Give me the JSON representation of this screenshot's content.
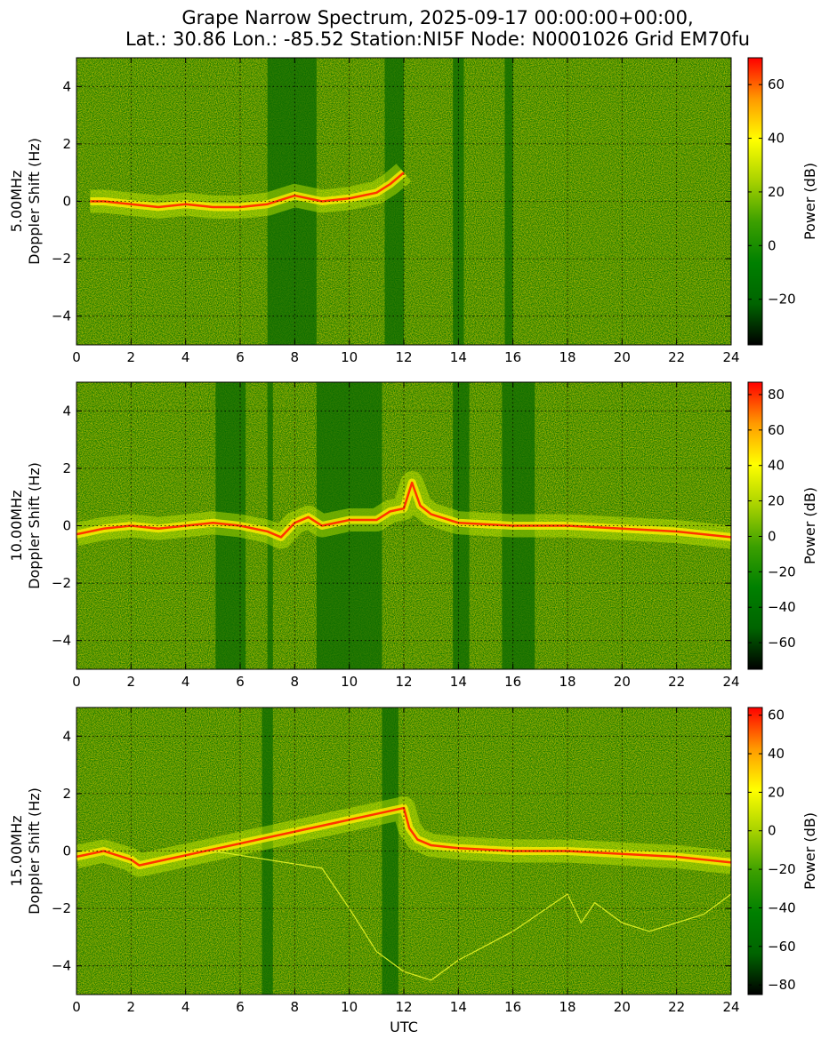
{
  "title_line1": "Grape Narrow Spectrum, 2025-09-17 00:00:00+00:00,",
  "title_line2": "Lat.: 30.86 Lon.: -85.52 Station:NI5F Node: N0001026 Grid EM70fu",
  "colors": {
    "colormap": [
      "#000000",
      "#006400",
      "#008000",
      "#3ca000",
      "#a8d200",
      "#ffff00",
      "#ff9900",
      "#ff0000"
    ],
    "grid": "#000000",
    "trace_main": "#ff3300"
  },
  "chart_data": [
    {
      "type": "heatmap",
      "panel": "5.00MHz",
      "ylabel_line1": "5.00MHz",
      "ylabel_line2": "Doppler Shift (Hz)",
      "xlabel": "",
      "x_ticks": [
        "0",
        "2",
        "4",
        "6",
        "8",
        "10",
        "12",
        "14",
        "16",
        "18",
        "20",
        "22",
        "24"
      ],
      "y_ticks": [
        "4",
        "2",
        "0",
        "−2",
        "−4"
      ],
      "xlim": [
        0,
        24
      ],
      "ylim": [
        -5,
        5
      ],
      "grid": true,
      "colorbar_label": "Power (dB)",
      "colorbar_range": [
        -37,
        70
      ],
      "colorbar_ticks": [
        "60",
        "40",
        "20",
        "0",
        "−20"
      ],
      "colorbar_tick_values": [
        60,
        40,
        20,
        0,
        -20
      ],
      "main_trace": {
        "x": [
          0.5,
          1.0,
          2.0,
          3.0,
          4.0,
          5.0,
          6.0,
          7.0,
          8.0,
          9.0,
          10.0,
          11.0,
          11.5,
          12.0
        ],
        "y": [
          0.0,
          0.0,
          -0.1,
          -0.2,
          -0.1,
          -0.2,
          -0.2,
          -0.1,
          0.2,
          0.0,
          0.1,
          0.3,
          0.6,
          1.0
        ]
      },
      "dark_bands": [
        [
          7.0,
          8.8
        ],
        [
          11.3,
          12.0
        ],
        [
          13.8,
          14.2
        ],
        [
          15.7,
          16.0
        ]
      ]
    },
    {
      "type": "heatmap",
      "panel": "10.00MHz",
      "ylabel_line1": "10.00MHz",
      "ylabel_line2": "Doppler Shift (Hz)",
      "xlabel": "",
      "x_ticks": [
        "0",
        "2",
        "4",
        "6",
        "8",
        "10",
        "12",
        "14",
        "16",
        "18",
        "20",
        "22",
        "24"
      ],
      "y_ticks": [
        "4",
        "2",
        "0",
        "−2",
        "−4"
      ],
      "xlim": [
        0,
        24
      ],
      "ylim": [
        -5,
        5
      ],
      "grid": true,
      "colorbar_label": "Power (dB)",
      "colorbar_range": [
        -75,
        87
      ],
      "colorbar_ticks": [
        "80",
        "60",
        "40",
        "20",
        "0",
        "−20",
        "−40",
        "−60"
      ],
      "colorbar_tick_values": [
        80,
        60,
        40,
        20,
        0,
        -20,
        -40,
        -60
      ],
      "main_trace": {
        "x": [
          0,
          1,
          2,
          3,
          4,
          5,
          6,
          7,
          7.5,
          8,
          8.5,
          9,
          10,
          11,
          11.5,
          12,
          12.3,
          12.6,
          13,
          14,
          16,
          18,
          20,
          22,
          24
        ],
        "y": [
          -0.3,
          -0.1,
          0.0,
          -0.1,
          0.0,
          0.1,
          0.0,
          -0.2,
          -0.4,
          0.1,
          0.3,
          0.0,
          0.2,
          0.2,
          0.5,
          0.6,
          1.5,
          0.7,
          0.4,
          0.1,
          0.0,
          0.0,
          -0.1,
          -0.2,
          -0.4
        ]
      },
      "dark_bands": [
        [
          5.1,
          6.2
        ],
        [
          7.0,
          7.2
        ],
        [
          8.8,
          11.2
        ],
        [
          13.8,
          14.4
        ],
        [
          15.6,
          16.8
        ]
      ]
    },
    {
      "type": "heatmap",
      "panel": "15.00MHz",
      "ylabel_line1": "15.00MHz",
      "ylabel_line2": "Doppler Shift (Hz)",
      "xlabel": "UTC",
      "x_ticks": [
        "0",
        "2",
        "4",
        "6",
        "8",
        "10",
        "12",
        "14",
        "16",
        "18",
        "20",
        "22",
        "24"
      ],
      "y_ticks": [
        "4",
        "2",
        "0",
        "−2",
        "−4"
      ],
      "xlim": [
        0,
        24
      ],
      "ylim": [
        -5,
        5
      ],
      "grid": true,
      "colorbar_label": "Power (dB)",
      "colorbar_range": [
        -85,
        64
      ],
      "colorbar_ticks": [
        "60",
        "40",
        "20",
        "0",
        "−20",
        "−40",
        "−60",
        "−80"
      ],
      "colorbar_tick_values": [
        60,
        40,
        20,
        0,
        -20,
        -40,
        -60,
        -80
      ],
      "main_trace": {
        "x": [
          0,
          1,
          2,
          2.3,
          12.0,
          12.2,
          12.5,
          13,
          14,
          16,
          18,
          20,
          22,
          23,
          24
        ],
        "y": [
          -0.2,
          0.0,
          -0.3,
          -0.5,
          1.5,
          0.8,
          0.4,
          0.2,
          0.1,
          0.0,
          0.0,
          -0.1,
          -0.2,
          -0.3,
          -0.4
        ]
      },
      "secondary_trace": {
        "x": [
          5.0,
          9.0,
          10.0,
          11.0,
          12.0,
          13.0,
          14.0,
          16.0,
          18.0,
          18.5,
          19.0,
          20.0,
          21.0,
          22.0,
          23.0,
          24.0
        ],
        "y": [
          0.0,
          -0.6,
          -2.0,
          -3.5,
          -4.2,
          -4.5,
          -3.8,
          -2.8,
          -1.5,
          -2.5,
          -1.8,
          -2.5,
          -2.8,
          -2.5,
          -2.2,
          -1.5
        ]
      },
      "dark_bands": [
        [
          6.8,
          7.2
        ],
        [
          11.2,
          11.8
        ]
      ]
    }
  ]
}
